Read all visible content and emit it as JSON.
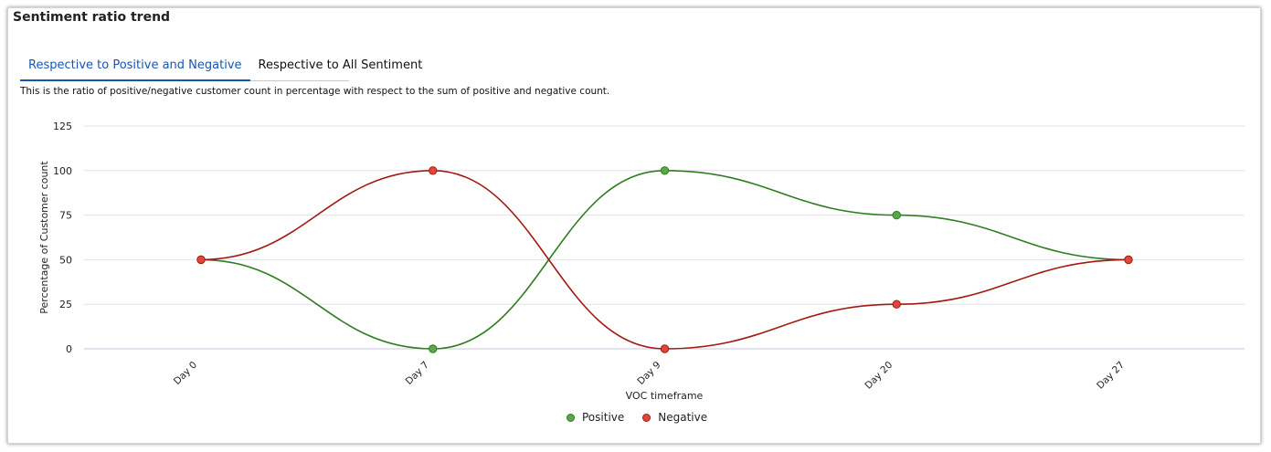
{
  "header": {
    "title": "Sentiment ratio trend"
  },
  "tabs": [
    {
      "label": "Respective to Positive and Negative",
      "active": true
    },
    {
      "label": "Respective to All Sentiment",
      "active": false
    }
  ],
  "description": "This is the ratio of positive/negative customer count in percentage with respect to the sum of positive and negative count.",
  "colors": {
    "positive": "#2e7d1e",
    "positive_marker": "#5aa84a",
    "negative": "#a11a10",
    "negative_marker": "#e0463a",
    "grid": "#e2e2ea",
    "axis": "#c8c8dc",
    "accent": "#1656b5"
  },
  "chart_data": {
    "type": "line",
    "xlabel": "VOC timeframe",
    "ylabel": "Percentage of Customer count",
    "categories": [
      "Day 0",
      "Day 7",
      "Day 9",
      "Day 20",
      "Day 27"
    ],
    "ylim": [
      0,
      125
    ],
    "yticks": [
      0,
      25,
      50,
      75,
      100,
      125
    ],
    "grid": true,
    "legend_position": "bottom-center",
    "series": [
      {
        "name": "Positive",
        "values": [
          50,
          0,
          100,
          75,
          50
        ]
      },
      {
        "name": "Negative",
        "values": [
          50,
          100,
          0,
          25,
          50
        ]
      }
    ]
  }
}
